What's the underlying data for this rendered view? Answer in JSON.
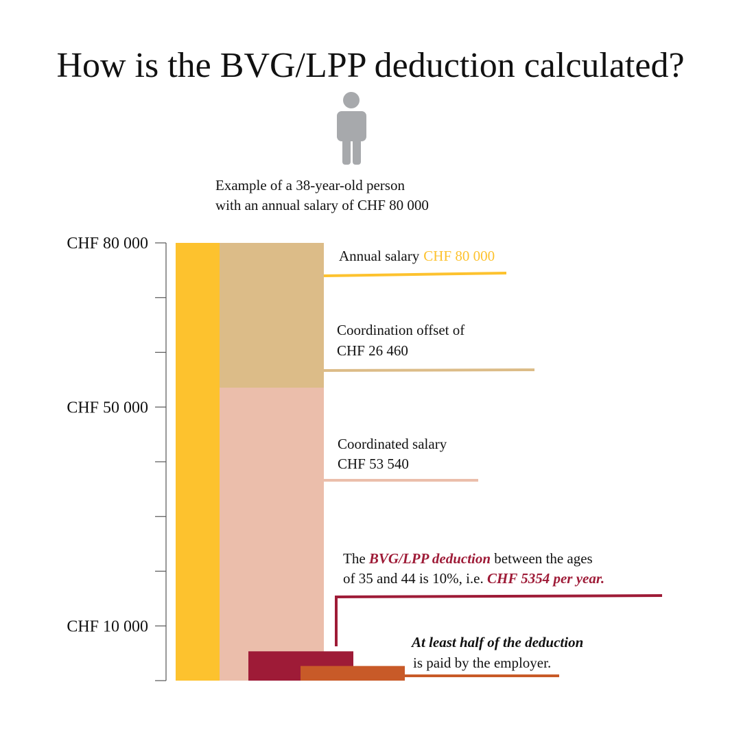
{
  "chart_data": {
    "type": "bar",
    "title": "How is the BVG/LPP deduction calculated?",
    "subtitle_lines": [
      "Example of a 38-year-old person",
      "with an annual salary of CHF 80 000"
    ],
    "ylim": [
      0,
      80000
    ],
    "yticks": [
      {
        "value": 80000,
        "label": "CHF 80 000"
      },
      {
        "value": 50000,
        "label": "CHF 50 000"
      },
      {
        "value": 10000,
        "label": "CHF 10 000"
      }
    ],
    "minor_yticks": [
      0,
      10000,
      20000,
      30000,
      40000,
      50000,
      60000,
      70000,
      80000
    ],
    "salary": {
      "label": "Annual salary",
      "value_label": "CHF 80 000",
      "value": 80000,
      "color": "#fdc22e"
    },
    "offset": {
      "label": "Coordination offset of",
      "value_label": "CHF 26 460",
      "value": 26460,
      "color": "#dcbc88"
    },
    "coordinated": {
      "label": "Coordinated salary",
      "value_label": "CHF 53 540",
      "value": 53540,
      "color": "#ebbeab"
    },
    "deduction": {
      "lines": [
        [
          "The ",
          "BVG/LPP deduction",
          " between the ages"
        ],
        [
          "of 35 and 44 is 10%, i.e. ",
          "CHF 5354 per year."
        ]
      ],
      "value": 5354,
      "color": "#9e1b37"
    },
    "employer": {
      "lines": [
        "At least half of the deduction",
        "is paid by the employer."
      ],
      "value": 2677,
      "color": "#c85a28"
    }
  }
}
